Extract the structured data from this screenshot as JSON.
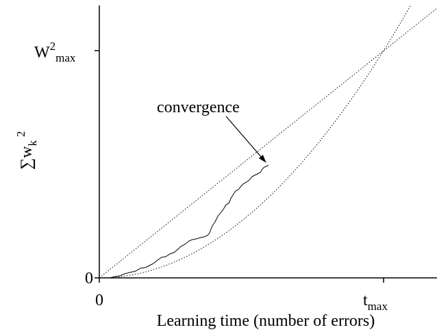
{
  "axes": {
    "x_label": "Learning time (number of errors)",
    "x_origin_label": "0",
    "y_origin_label": "0",
    "x_tick": {
      "base": "t",
      "subscript": "max"
    },
    "y_tick": {
      "base": "W",
      "superscript": "2",
      "subscript": "max"
    },
    "y_label": {
      "base": "∑w",
      "subscript": "k",
      "superscript": "2"
    }
  },
  "annotation": "convergence"
}
